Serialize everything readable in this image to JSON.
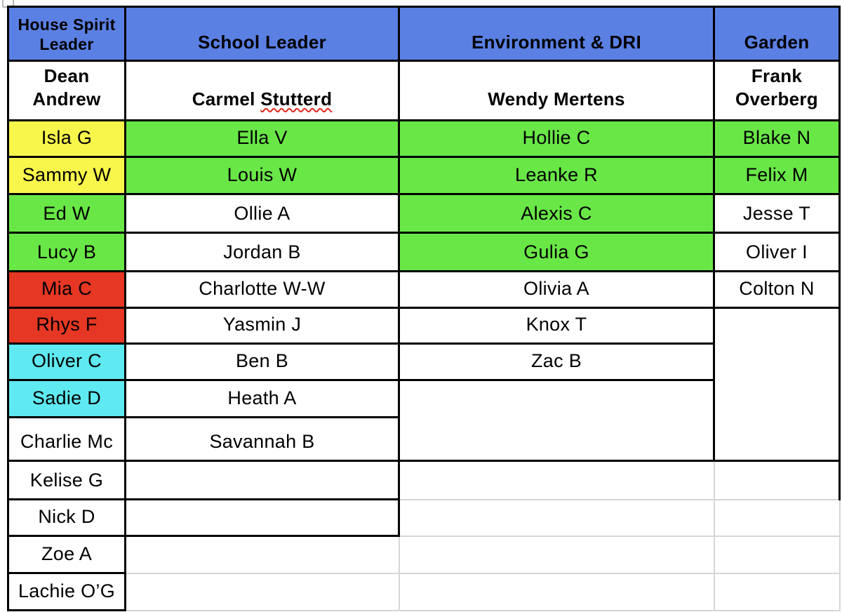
{
  "colors": {
    "header_blue": "#5b80e4",
    "grid_gray": "#d6d6d6",
    "spellcheck_red": "#e02b1d",
    "fills": {
      "yellow": "#f9f64b",
      "green": "#69e747",
      "red": "#e53723",
      "cyan": "#5fe9f0"
    }
  },
  "header": {
    "columns": [
      "House Spirit\nLeader",
      "School Leader",
      "Environment & DRI",
      "Garden"
    ]
  },
  "leaders": {
    "house": "Dean\nAndrew",
    "school_pre": "Carmel ",
    "school_misspelled": "Stutterd",
    "env": "Wendy Mertens",
    "garden": "Frank\nOverberg"
  },
  "rows": [
    [
      {
        "text": "Isla G",
        "fill": "yellow"
      },
      {
        "text": "Ella V",
        "fill": "green"
      },
      {
        "text": "Hollie C",
        "fill": "green"
      },
      {
        "text": "Blake N",
        "fill": "green"
      }
    ],
    [
      {
        "text": "Sammy W",
        "fill": "yellow"
      },
      {
        "text": "Louis W",
        "fill": "green"
      },
      {
        "text": "Leanke R",
        "fill": "green"
      },
      {
        "text": "Felix M",
        "fill": "green"
      }
    ],
    [
      {
        "text": "Ed W",
        "fill": "green"
      },
      {
        "text": "Ollie A"
      },
      {
        "text": "Alexis C",
        "fill": "green"
      },
      {
        "text": "Jesse T"
      }
    ],
    [
      {
        "text": "Lucy B",
        "fill": "green"
      },
      {
        "text": "Jordan B"
      },
      {
        "text": "Gulia G",
        "fill": "green"
      },
      {
        "text": "Oliver I"
      }
    ],
    [
      {
        "text": "Mia C",
        "fill": "red"
      },
      {
        "text": "Charlotte W-W"
      },
      {
        "text": "Olivia A"
      },
      {
        "text": "Colton N"
      }
    ],
    [
      {
        "text": "Rhys F",
        "fill": "red"
      },
      {
        "text": "Yasmin J"
      },
      {
        "text": "Knox T"
      },
      {
        "text": "",
        "rowspan": 4
      }
    ],
    [
      {
        "text": "Oliver C",
        "fill": "cyan"
      },
      {
        "text": "Ben B"
      },
      {
        "text": "Zac B"
      }
    ],
    [
      {
        "text": "Sadie D",
        "fill": "cyan"
      },
      {
        "text": "Heath A"
      },
      {
        "text": "",
        "rowspan": 2
      }
    ],
    [
      {
        "text": "Charlie Mc"
      },
      {
        "text": "Savannah B"
      }
    ],
    [
      {
        "text": "Kelise G"
      },
      {
        "text": ""
      },
      {
        "text": "",
        "light": true
      },
      {
        "text": "",
        "light": true,
        "right_black": true
      }
    ],
    [
      {
        "text": "Nick D"
      },
      {
        "text": ""
      },
      {
        "text": "",
        "light": true
      },
      {
        "text": "",
        "light": true
      }
    ],
    [
      {
        "text": "Zoe A"
      },
      {
        "text": "",
        "light": true
      },
      {
        "text": "",
        "light": true
      },
      {
        "text": "",
        "light": true
      }
    ],
    [
      {
        "text": "Lachie O’G"
      },
      {
        "text": "",
        "light": true
      },
      {
        "text": "",
        "light": true
      },
      {
        "text": "",
        "light": true
      }
    ]
  ]
}
